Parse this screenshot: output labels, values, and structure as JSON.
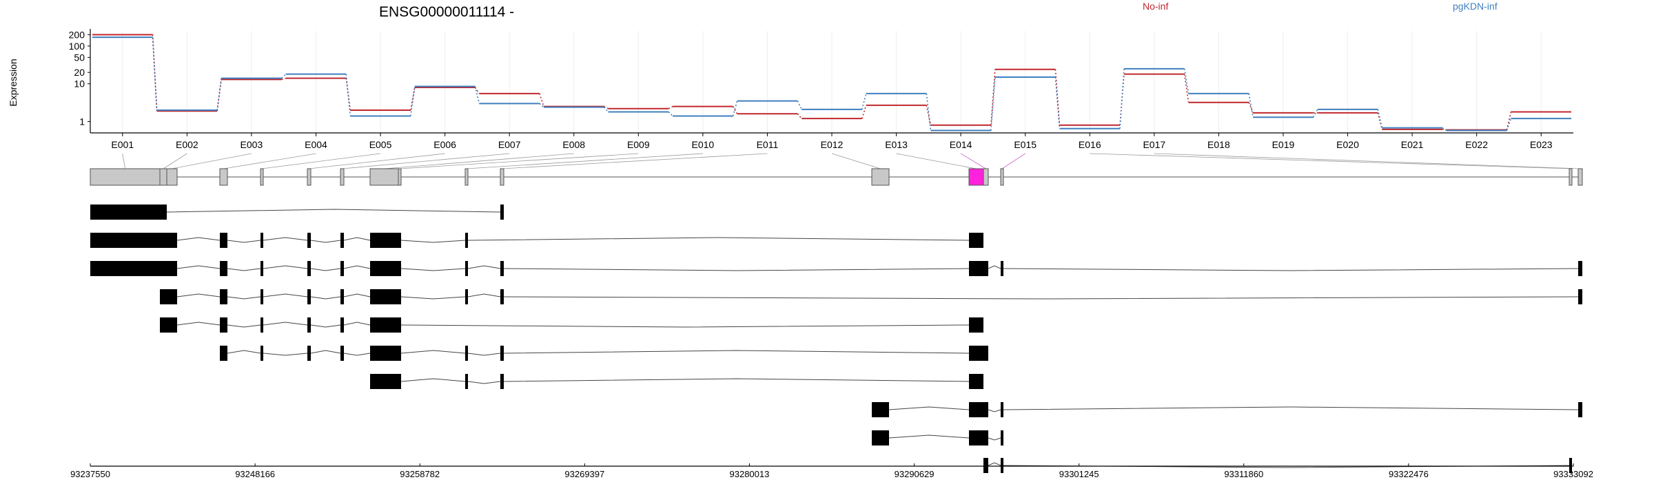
{
  "chart_data": {
    "type": "line",
    "title": "ENSG00000011114 -",
    "ylabel": "Expression",
    "yscale": "log",
    "ylim": [
      0.5,
      250
    ],
    "yticks": [
      "200",
      "100",
      "50",
      "20",
      "10",
      "1"
    ],
    "grid": false,
    "legend_placement": "top-right",
    "categories": [
      "E001",
      "E002",
      "E003",
      "E004",
      "E005",
      "E006",
      "E007",
      "E008",
      "E009",
      "E010",
      "E011",
      "E012",
      "E013",
      "E014",
      "E015",
      "E016",
      "E017",
      "E018",
      "E019",
      "E020",
      "E021",
      "E022",
      "E023"
    ],
    "series": [
      {
        "name": "No-inf",
        "color": "#c0272d",
        "values": [
          200,
          1.9,
          13,
          14,
          2.0,
          8,
          5.5,
          2.5,
          2.2,
          2.5,
          1.6,
          1.2,
          2.7,
          0.8,
          24,
          0.8,
          18,
          3.2,
          1.7,
          1.7,
          0.62,
          0.6,
          1.8
        ]
      },
      {
        "name": "pgKDN-inf",
        "color": "#3f7fbf",
        "values": [
          170,
          2.0,
          14,
          18,
          1.4,
          8.5,
          3.0,
          2.4,
          1.8,
          1.4,
          3.5,
          2.1,
          5.5,
          0.58,
          15,
          0.65,
          25,
          5.5,
          1.3,
          2.1,
          0.68,
          0.58,
          1.2
        ]
      }
    ]
  },
  "gene_model": {
    "flattened_exon_color": "#c8c8c8",
    "highlight_exon_color": "#ff22dd",
    "coordinates": [
      "93237550",
      "93248166",
      "93258782",
      "93269397",
      "93280013",
      "93290629",
      "93301245",
      "93311860",
      "93322476",
      "93333092"
    ]
  }
}
